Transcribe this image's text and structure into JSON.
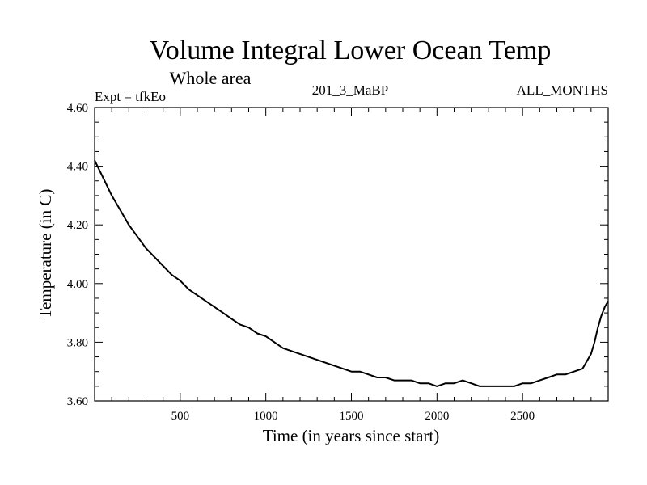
{
  "chart_data": {
    "type": "line",
    "title": "Volume Integral Lower Ocean Temp",
    "subtitle": "Whole area",
    "experiment": "Expt = tfkEo",
    "run_label": "201_3_MaBP",
    "months_label": "ALL_MONTHS",
    "xlabel": "Time (in years since start)",
    "ylabel": "Temperature (in C)",
    "xlim": [
      0,
      3000
    ],
    "ylim": [
      3.6,
      4.6
    ],
    "x_ticks": [
      500,
      1000,
      1500,
      2000,
      2500
    ],
    "y_ticks": [
      3.6,
      3.8,
      4.0,
      4.2,
      4.4,
      4.6
    ],
    "y_tick_labels": [
      "3.60",
      "3.80",
      "4.00",
      "4.20",
      "4.40",
      "4.60"
    ],
    "grid": false,
    "series": [
      {
        "x": [
          0,
          50,
          100,
          150,
          200,
          250,
          300,
          350,
          400,
          450,
          500,
          550,
          600,
          650,
          700,
          750,
          800,
          850,
          900,
          950,
          1000,
          1050,
          1100,
          1150,
          1200,
          1250,
          1300,
          1350,
          1400,
          1450,
          1500,
          1550,
          1600,
          1650,
          1700,
          1750,
          1800,
          1850,
          1900,
          1950,
          2000,
          2050,
          2100,
          2150,
          2200,
          2250,
          2300,
          2350,
          2400,
          2450,
          2500,
          2550,
          2600,
          2650,
          2700,
          2750,
          2800,
          2850,
          2900,
          2920,
          2940,
          2960,
          2980,
          3000
        ],
        "y": [
          4.42,
          4.36,
          4.3,
          4.25,
          4.2,
          4.16,
          4.12,
          4.09,
          4.06,
          4.03,
          4.01,
          3.98,
          3.96,
          3.94,
          3.92,
          3.9,
          3.88,
          3.86,
          3.85,
          3.83,
          3.82,
          3.8,
          3.78,
          3.77,
          3.76,
          3.75,
          3.74,
          3.73,
          3.72,
          3.71,
          3.7,
          3.7,
          3.69,
          3.68,
          3.68,
          3.67,
          3.67,
          3.67,
          3.66,
          3.66,
          3.65,
          3.66,
          3.66,
          3.67,
          3.66,
          3.65,
          3.65,
          3.65,
          3.65,
          3.65,
          3.66,
          3.66,
          3.67,
          3.68,
          3.69,
          3.69,
          3.7,
          3.71,
          3.76,
          3.8,
          3.85,
          3.89,
          3.92,
          3.94
        ]
      }
    ]
  }
}
